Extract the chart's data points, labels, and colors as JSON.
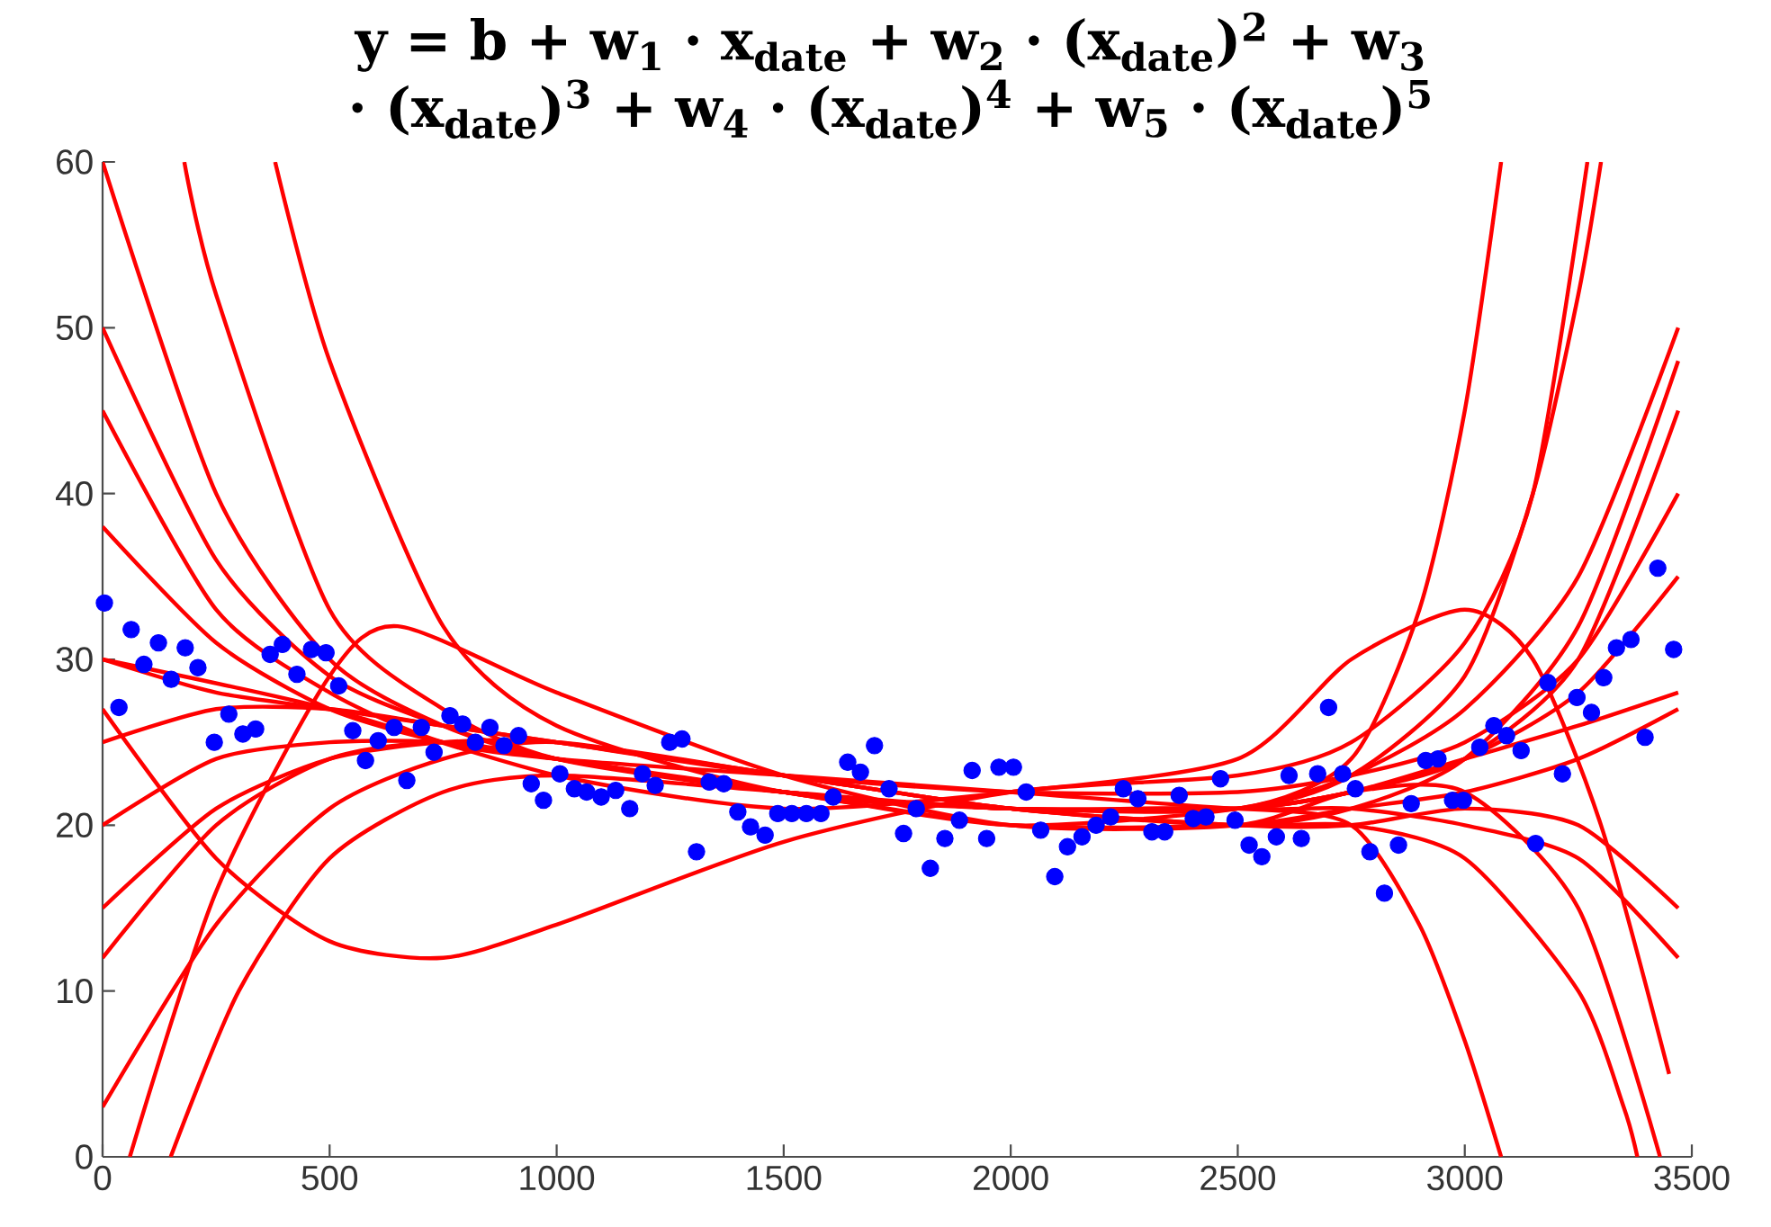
{
  "chart_data": {
    "type": "line",
    "title": "y = b + w$_{1}$ · x$_{date}$ + w$_{2}$ · (x$_{date}$)$^{2}$ + w$_{3}$ · (x$_{date}$)$^{3}$ + w$_{4}$ · (x$_{date}$)$^{4}$ + w$_{5}$ · (x$_{date}$)$^{5}$",
    "xlim": [
      0,
      3500
    ],
    "ylim": [
      0,
      60
    ],
    "xticks": [
      0,
      500,
      1000,
      1500,
      2000,
      2500,
      3000,
      3500
    ],
    "yticks": [
      0,
      10,
      20,
      30,
      40,
      50,
      60
    ],
    "line_style": "solid",
    "series": [
      {
        "color": "#ff0000",
        "marker": "none",
        "x": [
          0,
          250,
          500,
          750,
          1000,
          1500,
          2000,
          2500,
          2750,
          3000,
          3250,
          3470
        ],
        "values": [
          38,
          31,
          27,
          25,
          24,
          22,
          21,
          21,
          22,
          24,
          28,
          35
        ]
      },
      {
        "color": "#ff0000",
        "marker": "none",
        "x": [
          0,
          250,
          500,
          750,
          1000,
          1500,
          2000,
          2500,
          2750,
          3000,
          3250,
          3470
        ],
        "values": [
          20,
          24,
          25,
          25,
          24,
          22,
          20,
          20,
          21,
          22,
          24,
          27
        ]
      },
      {
        "color": "#ff0000",
        "marker": "none",
        "x": [
          0,
          250,
          500,
          750,
          1000,
          1500,
          2000,
          2500,
          2750,
          3000,
          3250,
          3470
        ],
        "values": [
          50,
          36,
          29,
          26,
          24,
          22,
          20,
          21,
          23,
          27,
          35,
          50
        ]
      },
      {
        "color": "#ff0000",
        "marker": "none",
        "x": [
          0,
          250,
          500,
          750,
          1000,
          1500,
          2000,
          2500,
          2750,
          3000,
          3250,
          3470
        ],
        "values": [
          12,
          20,
          24,
          25,
          24,
          22,
          21,
          21,
          22,
          24,
          26,
          28
        ]
      },
      {
        "color": "#ff0000",
        "marker": "none",
        "x": [
          0,
          250,
          500,
          750,
          1000,
          1500,
          2000,
          2500,
          2750,
          3000,
          3250,
          3470
        ],
        "values": [
          30,
          28,
          27,
          26,
          25,
          23,
          22,
          22,
          23,
          25,
          30,
          40
        ]
      },
      {
        "color": "#ff0000",
        "marker": "none",
        "x": [
          0,
          250,
          500,
          750,
          1000,
          1500,
          2000,
          2500,
          2750,
          3000,
          3250,
          3470
        ],
        "values": [
          45,
          33,
          28,
          25,
          24,
          23,
          22,
          21,
          21,
          20,
          18,
          12
        ]
      },
      {
        "color": "#ff0000",
        "marker": "none",
        "x": [
          0,
          250,
          500,
          750,
          1000,
          1500,
          2000,
          2500,
          2750,
          3000,
          3250,
          3470
        ],
        "values": [
          25,
          27,
          27,
          26,
          25,
          23,
          21,
          20,
          21,
          24,
          32,
          48
        ]
      },
      {
        "color": "#ff0000",
        "marker": "none",
        "x": [
          0,
          250,
          500,
          750,
          1000,
          1500,
          2000,
          2500,
          2750,
          3000,
          3250,
          3470
        ],
        "values": [
          15,
          21,
          24,
          25,
          25,
          23,
          21,
          20,
          20,
          21,
          20,
          15
        ]
      },
      {
        "color": "#ff0000",
        "marker": "none",
        "x": [
          180,
          250,
          500,
          750,
          1000,
          1500,
          2000,
          2500,
          2750,
          3000,
          3150,
          3250,
          3300
        ],
        "values": [
          60,
          52,
          33,
          27,
          24,
          22,
          21,
          21,
          23,
          29,
          40,
          52,
          60
        ]
      },
      {
        "color": "#ff0000",
        "marker": "none",
        "x": [
          0,
          250,
          500,
          750,
          1000,
          1500,
          2000,
          2500,
          2750,
          3000,
          3250,
          3350,
          3380
        ],
        "values": [
          3,
          14,
          21,
          24,
          25,
          23,
          21,
          20,
          20,
          18,
          10,
          3,
          0
        ]
      },
      {
        "color": "#ff0000",
        "marker": "none",
        "x": [
          0,
          250,
          500,
          750,
          1000,
          1500,
          2000,
          2500,
          2750,
          3000,
          3150,
          3270
        ],
        "values": [
          27,
          18,
          13,
          12,
          14,
          19,
          22,
          23,
          25,
          31,
          40,
          60
        ]
      },
      {
        "color": "#ff0000",
        "marker": "none",
        "x": [
          60,
          250,
          500,
          650,
          1000,
          1500,
          2000,
          2500,
          2750,
          3000,
          3250,
          3430
        ],
        "values": [
          0,
          16,
          29,
          32,
          28,
          23,
          20,
          20,
          22,
          22,
          15,
          0
        ]
      },
      {
        "color": "#ff0000",
        "marker": "none",
        "x": [
          380,
          500,
          750,
          1000,
          1500,
          2000,
          2500,
          2750,
          2900,
          3000,
          3080
        ],
        "values": [
          60,
          48,
          32,
          26,
          22,
          21,
          21,
          24,
          33,
          45,
          60
        ]
      },
      {
        "color": "#ff0000",
        "marker": "none",
        "x": [
          150,
          300,
          500,
          750,
          1000,
          1500,
          2000,
          2500,
          2750,
          2900,
          3000,
          3080
        ],
        "values": [
          0,
          10,
          18,
          22,
          23,
          22,
          21,
          21,
          20,
          14,
          7,
          0
        ]
      },
      {
        "color": "#ff0000",
        "marker": "none",
        "x": [
          0,
          500,
          1000,
          1500,
          2000,
          2500,
          2750,
          3000,
          3150,
          3300,
          3450
        ],
        "values": [
          30,
          27,
          23,
          21,
          22,
          24,
          30,
          33,
          30,
          20,
          5
        ]
      },
      {
        "color": "#ff0000",
        "marker": "none",
        "x": [
          0,
          250,
          500,
          750,
          1000,
          1500,
          2000,
          2500,
          2750,
          3000,
          3250,
          3470
        ],
        "values": [
          60,
          40,
          30,
          26,
          24,
          22,
          21,
          21,
          22,
          24,
          30,
          45
        ]
      },
      {
        "type": "scatter",
        "color": "#0000ff",
        "marker": "circle",
        "x": [
          4,
          36,
          63,
          91,
          123,
          151,
          182,
          210,
          246,
          278,
          309,
          337,
          369,
          396,
          428,
          460,
          492,
          520,
          551,
          579,
          607,
          642,
          670,
          702,
          730,
          765,
          793,
          821,
          853,
          884,
          916,
          944,
          971,
          1007,
          1039,
          1066,
          1098,
          1130,
          1161,
          1189,
          1217,
          1249,
          1276,
          1308,
          1336,
          1368,
          1399,
          1427,
          1459,
          1487,
          1518,
          1550,
          1582,
          1609,
          1641,
          1669,
          1700,
          1732,
          1764,
          1792,
          1823,
          1855,
          1887,
          1915,
          1947,
          1974,
          2006,
          2034,
          2066,
          2097,
          2125,
          2157,
          2188,
          2220,
          2248,
          2280,
          2311,
          2339,
          2371,
          2402,
          2430,
          2462,
          2494,
          2525,
          2553,
          2585,
          2613,
          2640,
          2676,
          2700,
          2731,
          2759,
          2791,
          2823,
          2854,
          2882,
          2914,
          2941,
          2973,
          2997,
          3033,
          3064,
          3092,
          3124,
          3156,
          3183,
          3215,
          3247,
          3279,
          3306,
          3334,
          3366,
          3397,
          3425,
          3460
        ],
        "values": [
          33.4,
          27.1,
          31.8,
          29.7,
          31.0,
          28.8,
          30.7,
          29.5,
          25.0,
          26.7,
          25.5,
          25.8,
          30.3,
          30.9,
          29.1,
          30.6,
          30.4,
          28.4,
          25.7,
          23.9,
          25.1,
          25.9,
          22.7,
          25.9,
          24.4,
          26.6,
          26.1,
          25.0,
          25.9,
          24.8,
          25.4,
          22.5,
          21.5,
          23.1,
          22.2,
          22.0,
          21.7,
          22.1,
          21.0,
          23.1,
          22.4,
          25.0,
          25.2,
          18.4,
          22.6,
          22.5,
          20.8,
          19.9,
          19.4,
          20.7,
          20.7,
          20.7,
          20.7,
          21.7,
          23.8,
          23.2,
          24.8,
          22.2,
          19.5,
          21.0,
          17.4,
          19.2,
          20.3,
          23.3,
          19.2,
          23.5,
          23.5,
          22.0,
          19.7,
          16.9,
          18.7,
          19.3,
          20.0,
          20.5,
          22.2,
          21.6,
          19.6,
          19.6,
          21.8,
          20.4,
          20.5,
          22.8,
          20.3,
          18.8,
          18.1,
          19.3,
          23.0,
          19.2,
          23.1,
          27.1,
          23.1,
          22.2,
          18.4,
          15.9,
          18.8,
          21.3,
          23.9,
          24.0,
          21.5,
          21.5,
          24.7,
          26.0,
          25.4,
          24.5,
          18.9,
          28.6,
          23.1,
          27.7,
          26.8,
          28.9,
          30.7,
          31.2,
          25.3,
          35.5,
          30.6
        ]
      }
    ]
  }
}
